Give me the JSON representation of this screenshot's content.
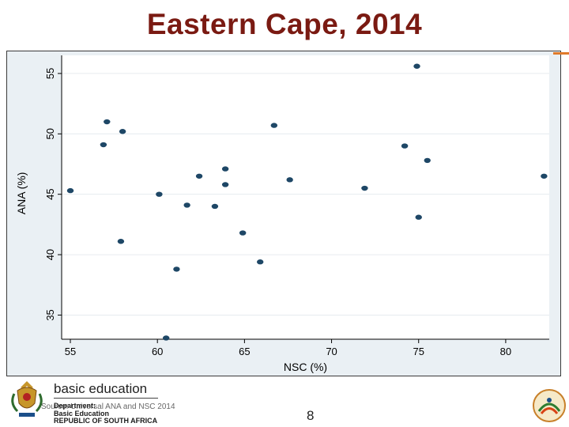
{
  "slide": {
    "title": "Eastern Cape, 2014",
    "page_number": "8",
    "source": "Source: Universal ANA and NSC 2014"
  },
  "footer": {
    "brand": "basic education",
    "dept_line1": "Department:",
    "dept_line2": "Basic Education",
    "dept_line3": "REPUBLIC OF SOUTH AFRICA"
  },
  "colors": {
    "title": "#7a1a12",
    "point": "#1e4766",
    "plot_bg": "#ffffff",
    "outer_bg": "#eaf0f4",
    "grid": "#e6ebef",
    "accent": "#e07a2a"
  },
  "chart_data": {
    "type": "scatter",
    "title": "",
    "xlabel": "NSC (%)",
    "ylabel": "ANA (%)",
    "xlim": [
      54.5,
      82.5
    ],
    "ylim": [
      33,
      56.5
    ],
    "xticks": [
      55,
      60,
      65,
      70,
      75,
      80
    ],
    "yticks": [
      35,
      40,
      45,
      50,
      55
    ],
    "grid": true,
    "points": [
      {
        "x": 55.0,
        "y": 45.3
      },
      {
        "x": 56.9,
        "y": 49.1
      },
      {
        "x": 57.1,
        "y": 51.0
      },
      {
        "x": 57.9,
        "y": 41.1
      },
      {
        "x": 58.0,
        "y": 50.2
      },
      {
        "x": 60.1,
        "y": 45.0
      },
      {
        "x": 60.5,
        "y": 33.1
      },
      {
        "x": 61.1,
        "y": 38.8
      },
      {
        "x": 61.7,
        "y": 44.1
      },
      {
        "x": 62.4,
        "y": 46.5
      },
      {
        "x": 63.3,
        "y": 44.0
      },
      {
        "x": 63.9,
        "y": 45.8
      },
      {
        "x": 63.9,
        "y": 47.1
      },
      {
        "x": 64.9,
        "y": 41.8
      },
      {
        "x": 65.9,
        "y": 39.4
      },
      {
        "x": 66.7,
        "y": 50.7
      },
      {
        "x": 67.6,
        "y": 46.2
      },
      {
        "x": 71.9,
        "y": 45.5
      },
      {
        "x": 74.2,
        "y": 49.0
      },
      {
        "x": 74.9,
        "y": 55.6
      },
      {
        "x": 75.0,
        "y": 43.1
      },
      {
        "x": 75.5,
        "y": 47.8
      },
      {
        "x": 82.2,
        "y": 46.5
      }
    ]
  }
}
